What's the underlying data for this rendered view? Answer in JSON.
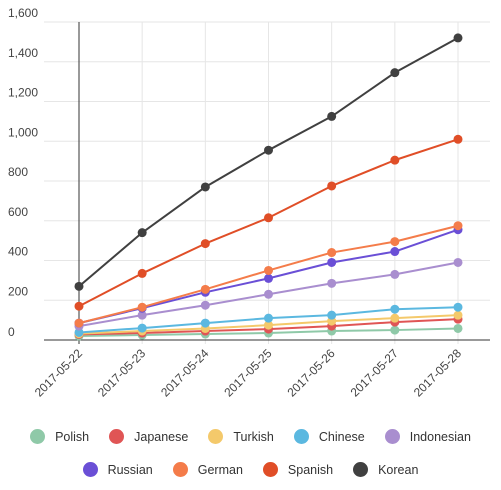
{
  "chart_data": {
    "type": "line",
    "categories": [
      "2017-05-22",
      "2017-05-23",
      "2017-05-24",
      "2017-05-25",
      "2017-05-26",
      "2017-05-27",
      "2017-05-28"
    ],
    "ylim": [
      0,
      1600
    ],
    "yticks": [
      "0",
      "200",
      "400",
      "600",
      "800",
      "1,000",
      "1,200",
      "1,400",
      "1,600"
    ],
    "grid": true,
    "legend_position": "bottom",
    "series": [
      {
        "name": "Polish",
        "color": "#8fc9a8",
        "values": [
          20,
          25,
          30,
          35,
          45,
          50,
          58
        ]
      },
      {
        "name": "Japanese",
        "color": "#e05555",
        "values": [
          28,
          35,
          45,
          55,
          70,
          90,
          105
        ]
      },
      {
        "name": "Turkish",
        "color": "#f4c96b",
        "values": [
          32,
          45,
          58,
          75,
          95,
          110,
          125
        ]
      },
      {
        "name": "Chinese",
        "color": "#5bb8e0",
        "values": [
          38,
          60,
          85,
          110,
          125,
          155,
          165
        ]
      },
      {
        "name": "Indonesian",
        "color": "#a98ecf",
        "values": [
          70,
          125,
          175,
          230,
          285,
          330,
          390
        ]
      },
      {
        "name": "Russian",
        "color": "#6a4fd6",
        "values": [
          85,
          160,
          240,
          310,
          390,
          445,
          555
        ]
      },
      {
        "name": "German",
        "color": "#f47c4a",
        "values": [
          85,
          165,
          255,
          350,
          440,
          495,
          575
        ]
      },
      {
        "name": "Spanish",
        "color": "#e04e27",
        "values": [
          170,
          335,
          485,
          615,
          775,
          905,
          1010
        ]
      },
      {
        "name": "Korean",
        "color": "#404040",
        "values": [
          270,
          540,
          770,
          955,
          1125,
          1345,
          1520
        ]
      }
    ]
  },
  "legend": {
    "row1": [
      {
        "label": "Polish",
        "color": "#8fc9a8"
      },
      {
        "label": "Japanese",
        "color": "#e05555"
      },
      {
        "label": "Turkish",
        "color": "#f4c96b"
      },
      {
        "label": "Chinese",
        "color": "#5bb8e0"
      },
      {
        "label": "Indonesian",
        "color": "#a98ecf"
      }
    ],
    "row2": [
      {
        "label": "Russian",
        "color": "#6a4fd6"
      },
      {
        "label": "German",
        "color": "#f47c4a"
      },
      {
        "label": "Spanish",
        "color": "#e04e27"
      },
      {
        "label": "Korean",
        "color": "#404040"
      }
    ]
  }
}
